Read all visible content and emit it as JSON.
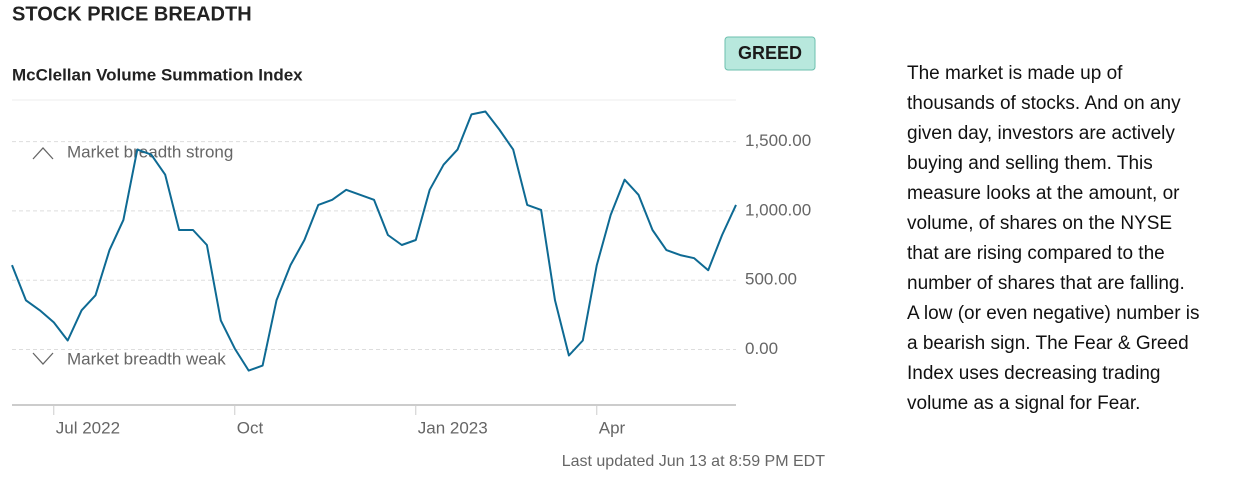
{
  "header": {
    "title": "STOCK PRICE BREADTH",
    "badge": "GREED"
  },
  "chart_data": {
    "type": "line",
    "title": "McClellan Volume Summation Index",
    "categories": [
      null,
      null,
      null,
      "Jul 2022",
      null,
      null,
      null,
      null,
      null,
      null,
      null,
      null,
      null,
      null,
      null,
      null,
      "Oct",
      null,
      null,
      null,
      null,
      null,
      null,
      null,
      null,
      null,
      null,
      null,
      null,
      "Jan 2023",
      null,
      null,
      null,
      null,
      null,
      null,
      null,
      null,
      null,
      null,
      null,
      null,
      "Apr",
      null,
      null,
      null,
      null,
      null,
      null,
      null,
      null,
      null,
      null
    ],
    "values": [
      609,
      355,
      283,
      196,
      65,
      283,
      391,
      717,
      935,
      1442,
      1406,
      1261,
      862,
      862,
      754,
      210,
      7,
      -152,
      -116,
      355,
      609,
      790,
      1043,
      1080,
      1152,
      1116,
      1080,
      826,
      754,
      790,
      1152,
      1333,
      1442,
      1696,
      1717,
      1587,
      1442,
      1043,
      1007,
      355,
      -43,
      65,
      609,
      971,
      1225,
      1116,
      862,
      717,
      681,
      659,
      572,
      826,
      1043
    ],
    "color": "#0e6a93",
    "ylim": [
      -400,
      1800
    ],
    "yticks": [
      {
        "value": 0,
        "label": "0.00"
      },
      {
        "value": 500,
        "label": "500.00"
      },
      {
        "value": 1000,
        "label": "1,000.00"
      },
      {
        "value": 1500,
        "label": "1,500.00"
      }
    ],
    "grid": true,
    "annotations": [
      "Market breadth strong",
      "Market breadth weak"
    ]
  },
  "description": [
    "The market is made up of",
    "thousands of stocks. And on any",
    "given day, investors are actively",
    "buying and selling them. This",
    "measure looks at the amount, or",
    "volume, of shares on the NYSE",
    "that are rising compared to the",
    "number of shares that are falling.",
    "A low (or even negative) number is",
    "a bearish sign. The Fear & Greed",
    "Index uses decreasing trading",
    "volume as a signal for Fear."
  ],
  "footer": "Last updated Jun 13 at 8:59 PM EDT"
}
